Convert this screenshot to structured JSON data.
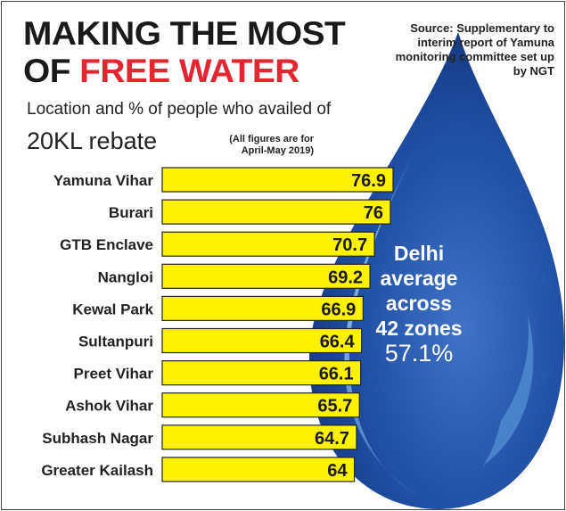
{
  "headline": {
    "line1": "MAKING THE MOST",
    "line2_prefix": "OF ",
    "line2_highlight": "FREE WATER"
  },
  "source": "Source: Supplementary to interim report of Yamuna monitoring committee set up by NGT",
  "subtitle_line1": "Location and % of people who availed of",
  "subtitle_line2": "20KL rebate",
  "note": "(All figures are for April-May 2019)",
  "average": {
    "line1": "Delhi",
    "line2": "average",
    "line3": "across",
    "line4": "42 zones",
    "value": "57.1%"
  },
  "colors": {
    "bar": "#fff200",
    "headline_red": "#e3262f",
    "drop_dark": "#173c8c",
    "drop_light": "#8ecaf0"
  },
  "chart_data": {
    "type": "bar",
    "orientation": "horizontal",
    "categories": [
      "Yamuna Vihar",
      "Burari",
      "GTB Enclave",
      "Nangloi",
      "Kewal Park",
      "Sultanpuri",
      "Preet Vihar",
      "Ashok Vihar",
      "Subhash Nagar",
      "Greater Kailash"
    ],
    "values": [
      76.9,
      76,
      70.7,
      69.2,
      66.9,
      66.4,
      66.1,
      65.7,
      64.7,
      64
    ],
    "labels": [
      "76.9",
      "76",
      "70.7",
      "69.2",
      "66.9",
      "66.4",
      "66.1",
      "65.7",
      "64.7",
      "64"
    ],
    "title": "MAKING THE MOST OF FREE WATER",
    "xlabel": "",
    "ylabel": "",
    "xlim": [
      0,
      76.9
    ],
    "grid": false,
    "legend": "none"
  }
}
